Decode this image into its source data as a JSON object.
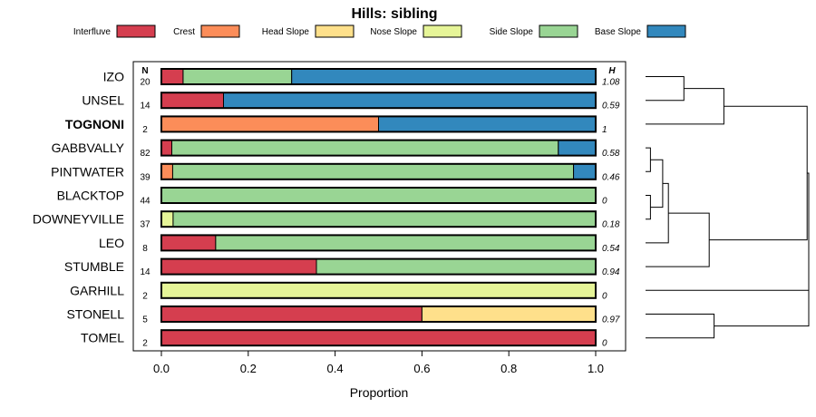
{
  "chart_data": {
    "type": "bar",
    "orientation": "horizontal",
    "stacked": true,
    "title": "Hills: sibling",
    "xlabel": "Proportion",
    "ylabel": "",
    "xlim": [
      0,
      1
    ],
    "xticks": [
      "0.0",
      "0.2",
      "0.4",
      "0.6",
      "0.8",
      "1.0"
    ],
    "legend_position": "top",
    "n_header": "N",
    "h_header": "H",
    "highlighted_category": "TOGNONI",
    "series": [
      {
        "name": "Interfluve",
        "color": "#D53E4F"
      },
      {
        "name": "Crest",
        "color": "#FC8D59"
      },
      {
        "name": "Head Slope",
        "color": "#FEE08B"
      },
      {
        "name": "Nose Slope",
        "color": "#E6F598"
      },
      {
        "name": "Side Slope",
        "color": "#99D594"
      },
      {
        "name": "Base Slope",
        "color": "#3288BD"
      }
    ],
    "rows": [
      {
        "category": "IZO",
        "n": "20",
        "h": "1.08",
        "values": [
          0.05,
          0,
          0,
          0,
          0.25,
          0.7
        ]
      },
      {
        "category": "UNSEL",
        "n": "14",
        "h": "0.59",
        "values": [
          0.143,
          0,
          0,
          0,
          0,
          0.857
        ]
      },
      {
        "category": "TOGNONI",
        "n": "2",
        "h": "1",
        "values": [
          0,
          0.5,
          0,
          0,
          0,
          0.5
        ]
      },
      {
        "category": "GABBVALLY",
        "n": "82",
        "h": "0.58",
        "values": [
          0.024,
          0,
          0,
          0,
          0.89,
          0.086
        ]
      },
      {
        "category": "PINTWATER",
        "n": "39",
        "h": "0.46",
        "values": [
          0,
          0.026,
          0,
          0,
          0.923,
          0.051
        ]
      },
      {
        "category": "BLACKTOP",
        "n": "44",
        "h": "0",
        "values": [
          0,
          0,
          0,
          0,
          1.0,
          0
        ]
      },
      {
        "category": "DOWNEYVILLE",
        "n": "37",
        "h": "0.18",
        "values": [
          0,
          0,
          0,
          0.027,
          0.973,
          0
        ]
      },
      {
        "category": "LEO",
        "n": "8",
        "h": "0.54",
        "values": [
          0.125,
          0,
          0,
          0,
          0.875,
          0
        ]
      },
      {
        "category": "STUMBLE",
        "n": "14",
        "h": "0.94",
        "values": [
          0.357,
          0,
          0,
          0,
          0.643,
          0
        ]
      },
      {
        "category": "GARHILL",
        "n": "2",
        "h": "0",
        "values": [
          0,
          0,
          0,
          1.0,
          0,
          0
        ]
      },
      {
        "category": "STONELL",
        "n": "5",
        "h": "0.97",
        "values": [
          0.6,
          0,
          0.4,
          0,
          0,
          0
        ]
      },
      {
        "category": "TOMEL",
        "n": "2",
        "h": "0",
        "values": [
          1.0,
          0,
          0,
          0,
          0,
          0
        ]
      }
    ],
    "dendrogram": {
      "leaves": [
        "IZO",
        "UNSEL",
        "TOGNONI",
        "GABBVALLY",
        "PINTWATER",
        "BLACKTOP",
        "DOWNEYVILLE",
        "LEO",
        "STUMBLE",
        "GARHILL",
        "STONELL",
        "TOMEL"
      ],
      "max_height": 1.0,
      "merges": [
        {
          "a": 0,
          "b": 1,
          "height": 0.235
        },
        {
          "a": 3,
          "b": 4,
          "height": 0.03
        },
        {
          "a": 5,
          "b": 6,
          "height": 0.03
        },
        {
          "a": -2,
          "b": -3,
          "height": 0.105
        },
        {
          "a": -1,
          "b": 2,
          "height": 0.48
        },
        {
          "a": -4,
          "b": 7,
          "height": 0.14
        },
        {
          "a": -6,
          "b": 8,
          "height": 0.39
        },
        {
          "a": 10,
          "b": 11,
          "height": 0.42
        },
        {
          "a": -5,
          "b": -7,
          "height": 0.99
        },
        {
          "a": 9,
          "b": -8,
          "height": 1.0
        },
        {
          "a": -9,
          "b": -10,
          "height": 1.0
        }
      ]
    }
  }
}
